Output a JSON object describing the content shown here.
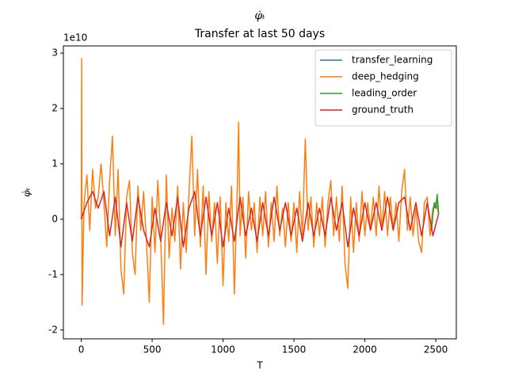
{
  "chart_data": {
    "type": "line",
    "title": "φ̇ₜ",
    "subtitle": "Transfer at last 50 days",
    "x_label": "T",
    "y_label": "φ̇ₜ",
    "y_offset_label": "1e10",
    "xlim": [
      -126,
      2645
    ],
    "ylim": [
      -2.16,
      3.13
    ],
    "xticks": [
      0,
      500,
      1000,
      1500,
      2000,
      2500
    ],
    "yticks": [
      -2,
      -1,
      0,
      1,
      2,
      3
    ],
    "legend": "upper right",
    "series": [
      {
        "name": "transfer_learning",
        "color": "#1f77b4",
        "x": [
          2470,
          2480,
          2490,
          2500,
          2510,
          2520
        ],
        "values": [
          -0.2,
          0.1,
          0.25,
          0.2,
          0.4,
          0.1
        ]
      },
      {
        "name": "deep_hedging",
        "color": "#ff7f0e",
        "x": [
          0,
          3,
          6,
          20,
          40,
          60,
          80,
          100,
          120,
          140,
          160,
          180,
          200,
          220,
          240,
          260,
          280,
          300,
          320,
          340,
          360,
          380,
          400,
          420,
          440,
          460,
          480,
          500,
          520,
          540,
          560,
          580,
          600,
          620,
          640,
          660,
          680,
          700,
          720,
          740,
          760,
          780,
          800,
          820,
          840,
          860,
          880,
          900,
          920,
          940,
          960,
          980,
          1000,
          1020,
          1040,
          1060,
          1080,
          1100,
          1110,
          1120,
          1140,
          1160,
          1180,
          1200,
          1220,
          1240,
          1260,
          1280,
          1300,
          1320,
          1340,
          1360,
          1380,
          1400,
          1420,
          1440,
          1460,
          1480,
          1500,
          1520,
          1540,
          1560,
          1580,
          1600,
          1620,
          1640,
          1660,
          1680,
          1700,
          1720,
          1740,
          1760,
          1780,
          1800,
          1820,
          1840,
          1860,
          1880,
          1900,
          1920,
          1940,
          1960,
          1980,
          2000,
          2020,
          2040,
          2060,
          2080,
          2100,
          2120,
          2140,
          2160,
          2180,
          2200,
          2220,
          2240,
          2260,
          2280,
          2300,
          2320,
          2340,
          2360,
          2380,
          2400,
          2420,
          2440,
          2460,
          2480,
          2500,
          2520
        ],
        "values": [
          0,
          2.9,
          -1.55,
          0.3,
          0.8,
          -0.2,
          0.9,
          0.2,
          0.4,
          1.0,
          0.3,
          -0.5,
          0.7,
          1.5,
          -0.3,
          0.9,
          -0.9,
          -1.35,
          0.4,
          0.7,
          -0.6,
          -1.0,
          0.6,
          -0.2,
          0.5,
          -0.4,
          -1.5,
          0.4,
          -0.6,
          0.7,
          -0.3,
          -1.9,
          0.8,
          -0.7,
          0.2,
          -0.4,
          0.6,
          -0.9,
          0.3,
          -0.6,
          0.5,
          1.5,
          -0.3,
          0.9,
          -0.5,
          0.6,
          -1.0,
          0.5,
          -0.4,
          0.3,
          -0.8,
          0.4,
          -1.2,
          0.3,
          -0.4,
          0.6,
          -1.35,
          0.5,
          1.75,
          -0.3,
          0.4,
          -0.7,
          0.5,
          -0.2,
          0.3,
          -0.6,
          0.4,
          -0.3,
          0.5,
          -0.5,
          0.3,
          -0.4,
          0.6,
          -0.3,
          0.2,
          -0.5,
          0.3,
          -0.4,
          0.3,
          -0.6,
          0.5,
          -0.3,
          1.45,
          -0.2,
          0.4,
          -0.5,
          0.3,
          -0.3,
          0.4,
          -0.5,
          0.3,
          0.7,
          -0.3,
          0.4,
          -0.4,
          0.6,
          -0.8,
          -1.25,
          0.4,
          -0.6,
          0.3,
          -0.4,
          0.5,
          -0.3,
          0.3,
          -0.2,
          0.4,
          -0.3,
          0.6,
          -0.2,
          0.5,
          -0.3,
          0.4,
          -0.2,
          0.3,
          -0.4,
          0.5,
          0.9,
          -0.2,
          0.4,
          -0.3,
          0.2,
          -0.4,
          -0.6,
          0.3,
          0.4,
          -0.3,
          0.2,
          0.3,
          0.1
        ]
      },
      {
        "name": "leading_order",
        "color": "#2ca02c",
        "x": [
          2470,
          2480,
          2490,
          2500,
          2510,
          2520
        ],
        "values": [
          -0.2,
          0.1,
          0.3,
          0.2,
          0.45,
          0.1
        ]
      },
      {
        "name": "ground_truth",
        "color": "#d62728",
        "x": [
          0,
          40,
          80,
          120,
          160,
          200,
          240,
          280,
          320,
          360,
          400,
          440,
          480,
          520,
          560,
          600,
          640,
          680,
          720,
          760,
          800,
          840,
          880,
          920,
          960,
          1000,
          1040,
          1080,
          1120,
          1160,
          1200,
          1240,
          1280,
          1320,
          1360,
          1400,
          1440,
          1480,
          1520,
          1560,
          1600,
          1640,
          1680,
          1720,
          1760,
          1800,
          1840,
          1880,
          1920,
          1960,
          2000,
          2040,
          2080,
          2120,
          2160,
          2200,
          2240,
          2280,
          2320,
          2360,
          2400,
          2440,
          2480,
          2520
        ],
        "values": [
          0,
          0.3,
          0.5,
          0.2,
          0.5,
          -0.3,
          0.4,
          -0.5,
          0.3,
          -0.4,
          0.4,
          -0.2,
          -0.5,
          0.2,
          -0.4,
          0.3,
          -0.3,
          0.4,
          -0.5,
          0.2,
          0.5,
          -0.3,
          0.4,
          -0.3,
          0.3,
          -0.5,
          0.2,
          -0.4,
          0.4,
          -0.3,
          0.2,
          -0.4,
          0.3,
          -0.3,
          0.4,
          -0.2,
          0.3,
          -0.3,
          0.2,
          -0.4,
          0.3,
          -0.3,
          0.2,
          -0.3,
          0.4,
          -0.2,
          0.3,
          -0.5,
          0.2,
          -0.3,
          0.3,
          -0.2,
          0.3,
          -0.2,
          0.4,
          -0.2,
          0.3,
          0.4,
          -0.2,
          0.3,
          -0.3,
          0.3,
          -0.3,
          0.1
        ]
      }
    ]
  }
}
